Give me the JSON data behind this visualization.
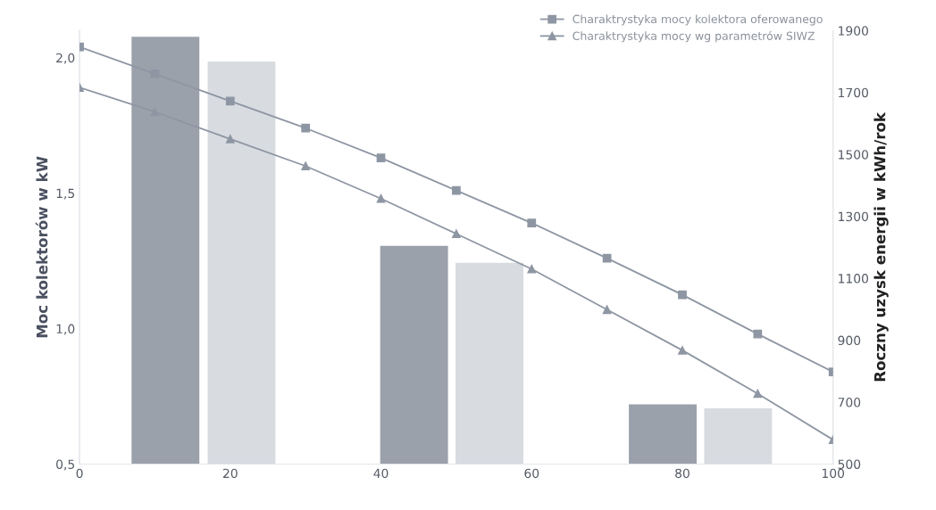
{
  "chart_data": {
    "type": "line",
    "ylabel": "Moc kolektorów w kW",
    "y2label": "Roczny uzysk energii w kWh/rok",
    "xlim": [
      0,
      100
    ],
    "xticks": [
      0,
      20,
      40,
      60,
      80,
      100
    ],
    "ylim": [
      0.5,
      2.1
    ],
    "yticks": [
      {
        "value": 0.5,
        "label": "0,5"
      },
      {
        "value": 1.0,
        "label": "1,0"
      },
      {
        "value": 1.5,
        "label": "1,5"
      },
      {
        "value": 2.0,
        "label": "2,0"
      }
    ],
    "y2lim": [
      500,
      1900
    ],
    "y2ticks": [
      500,
      700,
      900,
      1100,
      1300,
      1500,
      1700,
      1900
    ],
    "grid": false,
    "legend": "top right",
    "line_style": "solid",
    "series": [
      {
        "type": "bar",
        "axis": "y2",
        "color": "#9ba1ab",
        "x": [
          11.4,
          44.4,
          77.4
        ],
        "values": [
          1880,
          1205,
          693
        ]
      },
      {
        "type": "bar",
        "axis": "y2",
        "color": "#d8dbe0",
        "x": [
          21.5,
          54.4,
          87.4
        ],
        "values": [
          1800,
          1150,
          680
        ]
      },
      {
        "name": "Charaktrystyka mocy kolektora oferowanego",
        "color": "#8e96a3",
        "marker": "square",
        "x": [
          0,
          10,
          20,
          30,
          40,
          50,
          60,
          70,
          80,
          90,
          100
        ],
        "values": [
          2.04,
          1.94,
          1.84,
          1.74,
          1.63,
          1.51,
          1.39,
          1.26,
          1.125,
          0.98,
          0.84
        ]
      },
      {
        "name": "Charaktrystyka mocy wg parametrów SIWZ",
        "color": "#8e96a3",
        "marker": "triangle",
        "x": [
          0,
          10,
          20,
          30,
          40,
          50,
          60,
          70,
          80,
          90,
          100
        ],
        "values": [
          1.89,
          1.8,
          1.7,
          1.6,
          1.48,
          1.35,
          1.22,
          1.07,
          0.92,
          0.76,
          0.59
        ]
      }
    ]
  }
}
